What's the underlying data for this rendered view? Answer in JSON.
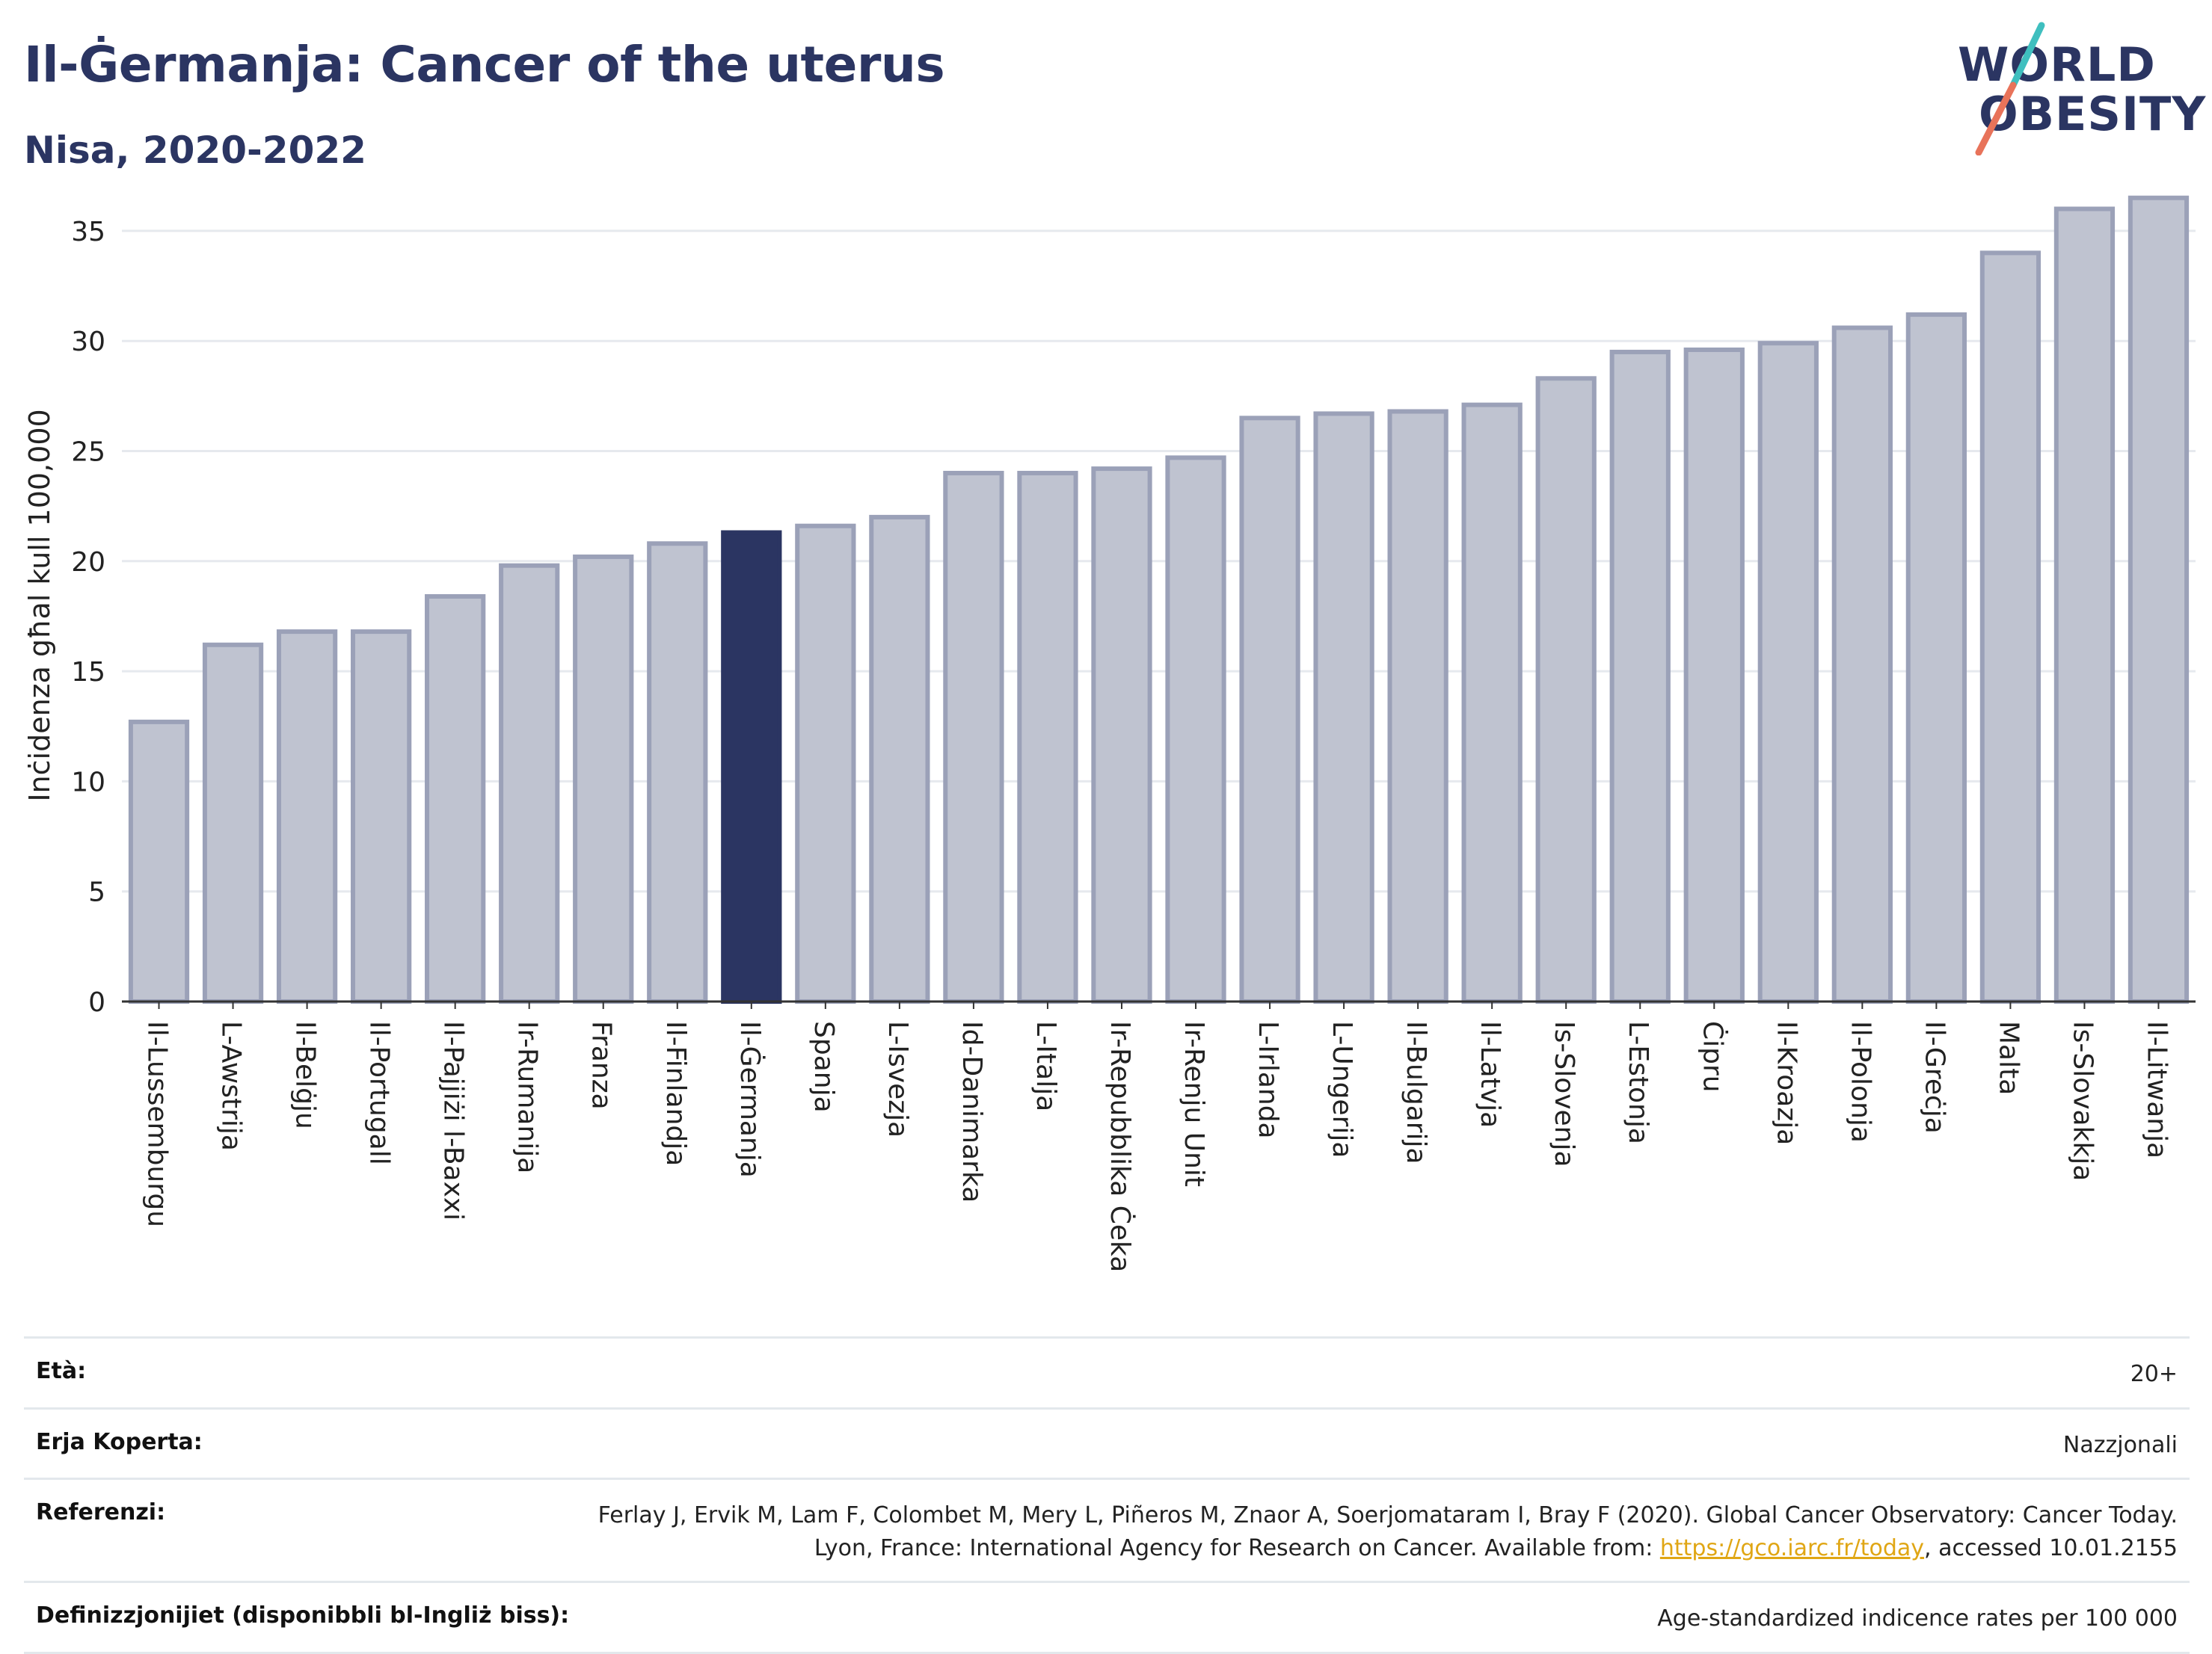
{
  "header": {
    "title": "Il-Ġermanja: Cancer of the uterus",
    "subtitle": "Nisa, 2020-2022"
  },
  "logo": {
    "line1": "WORLD",
    "line2": "OBESITY",
    "slash_colors": [
      "#3fbfbf",
      "#e8735a"
    ]
  },
  "chart_data": {
    "type": "bar",
    "ylabel": "Inċidenza għal kull 100,000",
    "ylim": [
      0,
      37
    ],
    "yticks": [
      0,
      5,
      10,
      15,
      20,
      25,
      30,
      35
    ],
    "grid": true,
    "highlight": "Il-Ġermanja",
    "colors": {
      "bar": "#bfc3d0",
      "bar_edge": "#9ba1b8",
      "highlight": "#2b3562",
      "grid": "#e6e9ee",
      "axis": "#333333"
    },
    "categories": [
      "Il-Lussemburgu",
      "L-Awstrija",
      "Il-Belġju",
      "Il-Portugall",
      "Il-Pajjiżi l-Baxxi",
      "Ir-Rumanija",
      "Franza",
      "Il-Finlandja",
      "Il-Ġermanja",
      "Spanja",
      "L-Isvezja",
      "Id-Danimarka",
      "L-Italja",
      "Ir-Repubblika Ċeka",
      "Ir-Renju Unit",
      "L-Irlanda",
      "L-Ungerija",
      "Il-Bulgarija",
      "Il-Latvja",
      "Is-Slovenja",
      "L-Estonja",
      "Ċipru",
      "Il-Kroazja",
      "Il-Polonja",
      "Il-Greċja",
      "Malta",
      "Is-Slovakkja",
      "Il-Litwanja"
    ],
    "values": [
      12.7,
      16.2,
      16.8,
      16.8,
      18.4,
      19.8,
      20.2,
      20.8,
      21.3,
      21.6,
      22.0,
      24.0,
      24.0,
      24.2,
      24.7,
      26.5,
      26.7,
      26.8,
      27.1,
      28.3,
      29.5,
      29.6,
      29.9,
      30.6,
      31.2,
      34.0,
      36.0,
      36.5
    ]
  },
  "meta": {
    "age": {
      "label": "Età:",
      "value": "20+"
    },
    "area": {
      "label": "Erja Koperta:",
      "value": "Nazzjonali"
    },
    "references": {
      "label": "Referenzi:",
      "text_before": "Ferlay J, Ervik M, Lam F, Colombet M, Mery L, Piñeros M, Znaor A, Soerjomataram I, Bray F (2020). Global Cancer Observatory: Cancer Today. Lyon, France: International Agency for Research on Cancer. Available from: ",
      "link": "https://gco.iarc.fr/today",
      "text_after": ", accessed 10.01.2155"
    },
    "definitions": {
      "label": "Definizzjonijiet (disponibbli bl-Ingliż biss):",
      "value": "Age-standardized indicence rates per 100 000"
    }
  }
}
